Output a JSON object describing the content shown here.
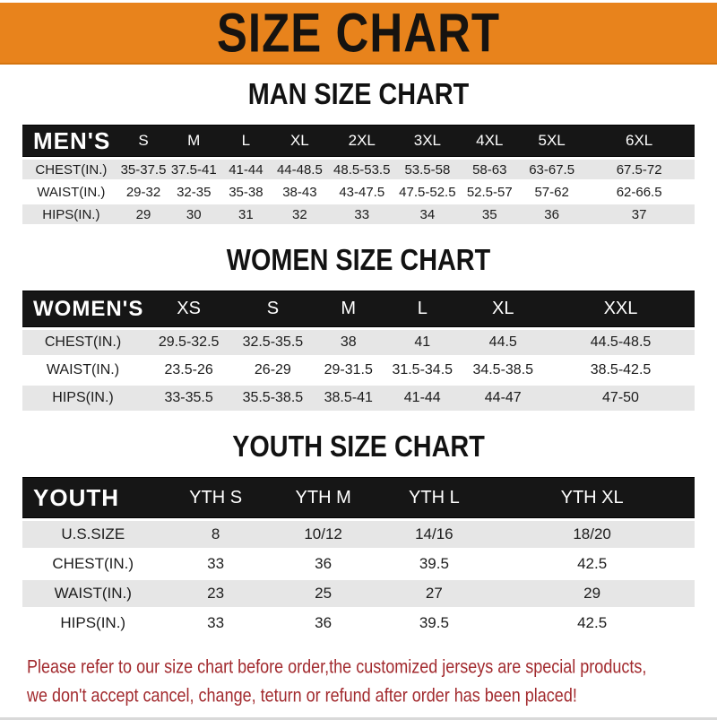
{
  "banner": {
    "title": "SIZE CHART"
  },
  "colors": {
    "banner_bg": "#E8831C",
    "banner_text": "#161310",
    "table_header_bg": "#161616",
    "table_header_text": "#FFFFFF",
    "row_gray": "#E6E6E6",
    "row_white": "#FFFFFF",
    "notice_red": "#A22A2E"
  },
  "chart_data": [
    {
      "type": "table",
      "id": "men",
      "title": "MAN SIZE CHART",
      "corner_label": "MEN'S",
      "columns": [
        "S",
        "M",
        "L",
        "XL",
        "2XL",
        "3XL",
        "4XL",
        "5XL",
        "6XL"
      ],
      "rows": [
        {
          "label": "CHEST(IN.)",
          "values": [
            "35-37.5",
            "37.5-41",
            "41-44",
            "44-48.5",
            "48.5-53.5",
            "53.5-58",
            "58-63",
            "63-67.5",
            "67.5-72"
          ]
        },
        {
          "label": "WAIST(IN.)",
          "values": [
            "29-32",
            "32-35",
            "35-38",
            "38-43",
            "43-47.5",
            "47.5-52.5",
            "52.5-57",
            "57-62",
            "62-66.5"
          ]
        },
        {
          "label": "HIPS(IN.)",
          "values": [
            "29",
            "30",
            "31",
            "32",
            "33",
            "34",
            "35",
            "36",
            "37"
          ]
        }
      ]
    },
    {
      "type": "table",
      "id": "women",
      "title": "WOMEN SIZE CHART",
      "corner_label": "WOMEN'S",
      "columns": [
        "XS",
        "S",
        "M",
        "L",
        "XL",
        "XXL"
      ],
      "rows": [
        {
          "label": "CHEST(IN.)",
          "values": [
            "29.5-32.5",
            "32.5-35.5",
            "38",
            "41",
            "44.5",
            "44.5-48.5"
          ]
        },
        {
          "label": "WAIST(IN.)",
          "values": [
            "23.5-26",
            "26-29",
            "29-31.5",
            "31.5-34.5",
            "34.5-38.5",
            "38.5-42.5"
          ]
        },
        {
          "label": "HIPS(IN.)",
          "values": [
            "33-35.5",
            "35.5-38.5",
            "38.5-41",
            "41-44",
            "44-47",
            "47-50"
          ]
        }
      ]
    },
    {
      "type": "table",
      "id": "youth",
      "title": "YOUTH SIZE CHART",
      "corner_label": "YOUTH",
      "columns": [
        "YTH S",
        "YTH M",
        "YTH L",
        "YTH XL"
      ],
      "rows": [
        {
          "label": "U.S.SIZE",
          "values": [
            "8",
            "10/12",
            "14/16",
            "18/20"
          ]
        },
        {
          "label": "CHEST(IN.)",
          "values": [
            "33",
            "36",
            "39.5",
            "42.5"
          ]
        },
        {
          "label": "WAIST(IN.)",
          "values": [
            "23",
            "25",
            "27",
            "29"
          ]
        },
        {
          "label": "HIPS(IN.)",
          "values": [
            "33",
            "36",
            "39.5",
            "42.5"
          ]
        }
      ]
    }
  ],
  "footer": {
    "line1": "Please refer to our size chart before order,the customized jerseys are special products,",
    "line2": "we don't accept cancel, change, teturn or refund after order has been placed!"
  }
}
